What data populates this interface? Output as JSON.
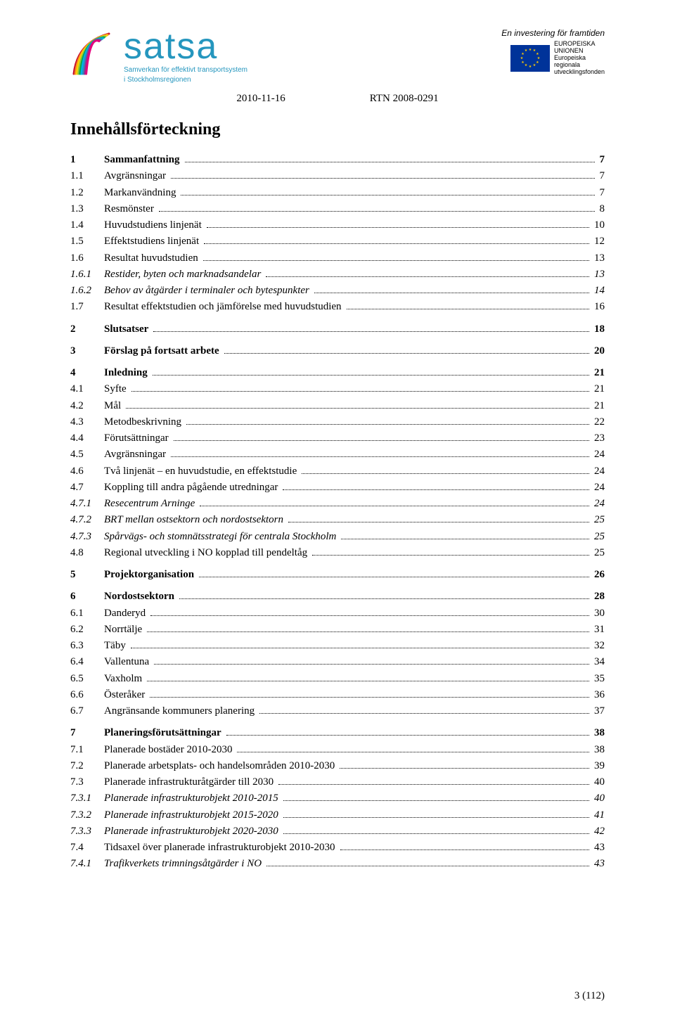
{
  "header": {
    "logo_main": "satsa",
    "logo_sub1": "Samverkan för effektivt transportsystem",
    "logo_sub2": "i Stockholmsregionen",
    "right_top": "En investering för framtiden",
    "eu_line1": "EUROPEISKA",
    "eu_line2": "UNIONEN",
    "eu_line3": "Europeiska",
    "eu_line4": "regionala",
    "eu_line5": "utvecklingsfonden",
    "date": "2010-11-16",
    "ref": "RTN 2008-0291"
  },
  "title": "Innehållsförteckning",
  "toc": [
    {
      "num": "1",
      "label": "Sammanfattning",
      "page": "7",
      "bold": true,
      "gap": false
    },
    {
      "num": "1.1",
      "label": "Avgränsningar",
      "page": "7",
      "bold": false,
      "gap": false
    },
    {
      "num": "1.2",
      "label": "Markanvändning",
      "page": "7",
      "bold": false,
      "gap": false
    },
    {
      "num": "1.3",
      "label": "Resmönster",
      "page": "8",
      "bold": false,
      "gap": false
    },
    {
      "num": "1.4",
      "label": "Huvudstudiens linjenät",
      "page": "10",
      "bold": false,
      "gap": false
    },
    {
      "num": "1.5",
      "label": "Effektstudiens linjenät",
      "page": "12",
      "bold": false,
      "gap": false
    },
    {
      "num": "1.6",
      "label": "Resultat huvudstudien",
      "page": "13",
      "bold": false,
      "gap": false
    },
    {
      "num": "1.6.1",
      "label": "Restider, byten och marknadsandelar",
      "page": "13",
      "bold": false,
      "italic": true,
      "gap": false
    },
    {
      "num": "1.6.2",
      "label": "Behov av åtgärder i terminaler och bytespunkter",
      "page": "14",
      "bold": false,
      "italic": true,
      "gap": false
    },
    {
      "num": "1.7",
      "label": "Resultat effektstudien och jämförelse med huvudstudien",
      "page": "16",
      "bold": false,
      "gap": false
    },
    {
      "num": "2",
      "label": "Slutsatser",
      "page": "18",
      "bold": true,
      "gap": true
    },
    {
      "num": "3",
      "label": "Förslag på fortsatt arbete",
      "page": "20",
      "bold": true,
      "gap": true
    },
    {
      "num": "4",
      "label": "Inledning",
      "page": "21",
      "bold": true,
      "gap": true
    },
    {
      "num": "4.1",
      "label": "Syfte",
      "page": "21",
      "bold": false,
      "gap": false
    },
    {
      "num": "4.2",
      "label": "Mål",
      "page": "21",
      "bold": false,
      "gap": false
    },
    {
      "num": "4.3",
      "label": "Metodbeskrivning",
      "page": "22",
      "bold": false,
      "gap": false
    },
    {
      "num": "4.4",
      "label": "Förutsättningar",
      "page": "23",
      "bold": false,
      "gap": false
    },
    {
      "num": "4.5",
      "label": "Avgränsningar",
      "page": "24",
      "bold": false,
      "gap": false
    },
    {
      "num": "4.6",
      "label": "Två linjenät – en huvudstudie, en effektstudie",
      "page": "24",
      "bold": false,
      "gap": false
    },
    {
      "num": "4.7",
      "label": "Koppling till andra pågående utredningar",
      "page": "24",
      "bold": false,
      "gap": false
    },
    {
      "num": "4.7.1",
      "label": "Resecentrum Arninge",
      "page": "24",
      "bold": false,
      "italic": true,
      "gap": false
    },
    {
      "num": "4.7.2",
      "label": "BRT mellan ostsektorn och nordostsektorn",
      "page": "25",
      "bold": false,
      "italic": true,
      "gap": false
    },
    {
      "num": "4.7.3",
      "label": "Spårvägs- och stomnätsstrategi för centrala Stockholm",
      "page": "25",
      "bold": false,
      "italic": true,
      "gap": false
    },
    {
      "num": "4.8",
      "label": "Regional utveckling i NO kopplad till pendeltåg",
      "page": "25",
      "bold": false,
      "gap": false
    },
    {
      "num": "5",
      "label": "Projektorganisation",
      "page": "26",
      "bold": true,
      "gap": true
    },
    {
      "num": "6",
      "label": "Nordostsektorn",
      "page": "28",
      "bold": true,
      "gap": true
    },
    {
      "num": "6.1",
      "label": "Danderyd",
      "page": "30",
      "bold": false,
      "gap": false
    },
    {
      "num": "6.2",
      "label": "Norrtälje",
      "page": "31",
      "bold": false,
      "gap": false
    },
    {
      "num": "6.3",
      "label": "Täby",
      "page": "32",
      "bold": false,
      "gap": false
    },
    {
      "num": "6.4",
      "label": "Vallentuna",
      "page": "34",
      "bold": false,
      "gap": false
    },
    {
      "num": "6.5",
      "label": "Vaxholm",
      "page": "35",
      "bold": false,
      "gap": false
    },
    {
      "num": "6.6",
      "label": "Österåker",
      "page": "36",
      "bold": false,
      "gap": false
    },
    {
      "num": "6.7",
      "label": "Angränsande kommuners planering",
      "page": "37",
      "bold": false,
      "gap": false
    },
    {
      "num": "7",
      "label": "Planeringsförutsättningar",
      "page": "38",
      "bold": true,
      "gap": true
    },
    {
      "num": "7.1",
      "label": "Planerade bostäder 2010-2030",
      "page": "38",
      "bold": false,
      "gap": false
    },
    {
      "num": "7.2",
      "label": "Planerade arbetsplats- och handelsområden 2010-2030",
      "page": "39",
      "bold": false,
      "gap": false
    },
    {
      "num": "7.3",
      "label": "Planerade infrastrukturåtgärder till 2030",
      "page": "40",
      "bold": false,
      "gap": false
    },
    {
      "num": "7.3.1",
      "label": "Planerade infrastrukturobjekt 2010-2015",
      "page": "40",
      "bold": false,
      "italic": true,
      "gap": false
    },
    {
      "num": "7.3.2",
      "label": "Planerade infrastrukturobjekt 2015-2020",
      "page": "41",
      "bold": false,
      "italic": true,
      "gap": false
    },
    {
      "num": "7.3.3",
      "label": "Planerade infrastrukturobjekt 2020-2030",
      "page": "42",
      "bold": false,
      "italic": true,
      "gap": false
    },
    {
      "num": "7.4",
      "label": "Tidsaxel över planerade infrastrukturobjekt 2010-2030",
      "page": "43",
      "bold": false,
      "gap": false
    },
    {
      "num": "7.4.1",
      "label": "Trafikverkets trimningsåtgärder i NO",
      "page": "43",
      "bold": false,
      "italic": true,
      "gap": false
    }
  ],
  "footer": "3 (112)",
  "swirl_colors": [
    "#c8102e",
    "#f7941e",
    "#ffd400",
    "#8cc63f",
    "#00a94f",
    "#00aeef",
    "#2596be",
    "#7f3f98",
    "#e4007c"
  ]
}
